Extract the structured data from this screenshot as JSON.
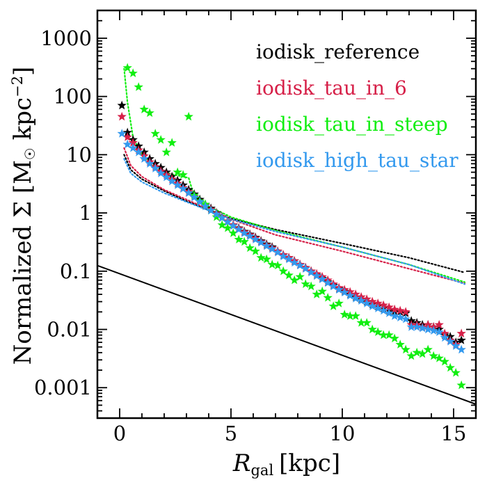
{
  "chart_data": {
    "type": "scatter",
    "title": "",
    "xlabel": "R_gal [kpc]",
    "xlabel_main": "R",
    "xlabel_sub": "gal",
    "xlabel_unit": "[kpc]",
    "ylabel": "Normalized Σ [M☉ kpc⁻²]",
    "ylabel_main": "Normalized Σ [M",
    "ylabel_sun": "☉",
    "ylabel_unit": " kpc",
    "ylabel_exp": "−2",
    "ylabel_close": "]",
    "yscale": "log",
    "xlim": [
      -1,
      16
    ],
    "ylim": [
      0.0003,
      3000
    ],
    "x_ticks": [
      0,
      5,
      10,
      15
    ],
    "x_tick_labels": [
      "0",
      "5",
      "10",
      "15"
    ],
    "y_ticks": [
      0.001,
      0.01,
      0.1,
      1,
      10,
      100,
      1000
    ],
    "y_tick_labels": [
      "0.001",
      "0.01",
      "0.1",
      "1",
      "10",
      "100",
      "1000"
    ],
    "legend_position": "top-right",
    "series": [
      {
        "name": "iodisk_reference",
        "color": "#000000",
        "marker": "star",
        "points": [
          [
            0.1,
            70
          ],
          [
            0.35,
            24
          ],
          [
            0.6,
            18
          ],
          [
            0.85,
            14
          ],
          [
            1.1,
            11
          ],
          [
            1.35,
            8.5
          ],
          [
            1.6,
            7
          ],
          [
            1.85,
            6
          ],
          [
            2.1,
            5
          ],
          [
            2.35,
            4.2
          ],
          [
            2.6,
            3.6
          ],
          [
            2.85,
            3
          ],
          [
            3.1,
            2.5
          ],
          [
            3.35,
            2.1
          ],
          [
            3.6,
            1.7
          ],
          [
            3.85,
            1.4
          ],
          [
            4.1,
            1.2
          ],
          [
            4.35,
            1.0
          ],
          [
            4.6,
            0.85
          ],
          [
            4.85,
            0.72
          ],
          [
            5.1,
            0.62
          ],
          [
            5.35,
            0.55
          ],
          [
            5.6,
            0.48
          ],
          [
            5.85,
            0.43
          ],
          [
            6.1,
            0.38
          ],
          [
            6.35,
            0.33
          ],
          [
            6.6,
            0.29
          ],
          [
            6.85,
            0.26
          ],
          [
            7.1,
            0.22
          ],
          [
            7.35,
            0.19
          ],
          [
            7.6,
            0.17
          ],
          [
            7.85,
            0.15
          ],
          [
            8.1,
            0.13
          ],
          [
            8.35,
            0.115
          ],
          [
            8.6,
            0.1
          ],
          [
            8.85,
            0.085
          ],
          [
            9.1,
            0.075
          ],
          [
            9.35,
            0.065
          ],
          [
            9.6,
            0.057
          ],
          [
            9.85,
            0.05
          ],
          [
            10.1,
            0.045
          ],
          [
            10.35,
            0.04
          ],
          [
            10.6,
            0.036
          ],
          [
            10.85,
            0.033
          ],
          [
            11.1,
            0.03
          ],
          [
            11.35,
            0.027
          ],
          [
            11.6,
            0.025
          ],
          [
            11.85,
            0.023
          ],
          [
            12.1,
            0.021
          ],
          [
            12.35,
            0.02
          ],
          [
            12.6,
            0.02
          ],
          [
            12.85,
            0.019
          ],
          [
            13.1,
            0.014
          ],
          [
            13.35,
            0.013
          ],
          [
            13.6,
            0.012
          ],
          [
            13.85,
            0.012
          ],
          [
            14.1,
            0.011
          ],
          [
            14.35,
            0.01
          ],
          [
            14.6,
            0.008
          ],
          [
            14.85,
            0.0075
          ],
          [
            15.1,
            0.006
          ],
          [
            15.35,
            0.0065
          ]
        ]
      },
      {
        "name": "iodisk_tau_in_6",
        "color": "#d62048",
        "marker": "star",
        "points": [
          [
            0.1,
            45
          ],
          [
            0.35,
            20
          ],
          [
            0.6,
            16
          ],
          [
            0.85,
            12
          ],
          [
            1.1,
            9.5
          ],
          [
            1.35,
            7.5
          ],
          [
            1.6,
            6.2
          ],
          [
            1.85,
            5.2
          ],
          [
            2.1,
            4.5
          ],
          [
            2.35,
            3.8
          ],
          [
            2.6,
            3.2
          ],
          [
            2.85,
            2.7
          ],
          [
            3.1,
            2.3
          ],
          [
            3.35,
            1.9
          ],
          [
            3.6,
            1.6
          ],
          [
            3.85,
            1.35
          ],
          [
            4.1,
            1.15
          ],
          [
            4.35,
            0.98
          ],
          [
            4.6,
            0.84
          ],
          [
            4.85,
            0.72
          ],
          [
            5.1,
            0.62
          ],
          [
            5.35,
            0.54
          ],
          [
            5.6,
            0.47
          ],
          [
            5.85,
            0.42
          ],
          [
            6.1,
            0.37
          ],
          [
            6.35,
            0.32
          ],
          [
            6.6,
            0.28
          ],
          [
            6.85,
            0.25
          ],
          [
            7.1,
            0.22
          ],
          [
            7.35,
            0.19
          ],
          [
            7.6,
            0.17
          ],
          [
            7.85,
            0.15
          ],
          [
            8.1,
            0.13
          ],
          [
            8.35,
            0.115
          ],
          [
            8.6,
            0.1
          ],
          [
            8.85,
            0.09
          ],
          [
            9.1,
            0.08
          ],
          [
            9.35,
            0.07
          ],
          [
            9.6,
            0.06
          ],
          [
            9.85,
            0.052
          ],
          [
            10.1,
            0.048
          ],
          [
            10.35,
            0.044
          ],
          [
            10.6,
            0.04
          ],
          [
            10.85,
            0.036
          ],
          [
            11.1,
            0.033
          ],
          [
            11.35,
            0.03
          ],
          [
            11.6,
            0.028
          ],
          [
            11.85,
            0.026
          ],
          [
            12.1,
            0.024
          ],
          [
            12.35,
            0.022
          ],
          [
            12.6,
            0.021
          ],
          [
            12.85,
            0.02
          ],
          [
            13.1,
            0.012
          ],
          [
            13.35,
            0.012
          ],
          [
            13.6,
            0.011
          ],
          [
            13.85,
            0.012
          ],
          [
            14.1,
            0.011
          ],
          [
            14.35,
            0.012
          ],
          [
            14.6,
            0.0085
          ],
          [
            14.85,
            0.0065
          ],
          [
            15.1,
            0.0055
          ],
          [
            15.35,
            0.0085
          ]
        ]
      },
      {
        "name": "iodisk_tau_in_steep",
        "color": "#11ee11",
        "marker": "star",
        "points": [
          [
            0.35,
            310
          ],
          [
            0.6,
            250
          ],
          [
            0.85,
            145
          ],
          [
            1.1,
            60
          ],
          [
            1.35,
            52
          ],
          [
            1.6,
            23
          ],
          [
            1.85,
            18
          ],
          [
            2.1,
            11
          ],
          [
            2.35,
            16
          ],
          [
            2.6,
            5
          ],
          [
            2.85,
            4.5
          ],
          [
            3.1,
            45
          ],
          [
            3.35,
            2
          ],
          [
            3.6,
            1.6
          ],
          [
            3.85,
            1.4
          ],
          [
            4.1,
            1.1
          ],
          [
            4.35,
            0.85
          ],
          [
            4.6,
            0.62
          ],
          [
            4.85,
            0.55
          ],
          [
            5.1,
            0.45
          ],
          [
            5.35,
            0.35
          ],
          [
            5.6,
            0.32
          ],
          [
            5.85,
            0.25
          ],
          [
            6.1,
            0.22
          ],
          [
            6.35,
            0.17
          ],
          [
            6.6,
            0.16
          ],
          [
            6.85,
            0.13
          ],
          [
            7.1,
            0.125
          ],
          [
            7.35,
            0.1
          ],
          [
            7.6,
            0.085
          ],
          [
            7.85,
            0.07
          ],
          [
            8.1,
            0.08
          ],
          [
            8.35,
            0.06
          ],
          [
            8.6,
            0.055
          ],
          [
            8.85,
            0.04
          ],
          [
            9.1,
            0.045
          ],
          [
            9.35,
            0.035
          ],
          [
            9.6,
            0.025
          ],
          [
            9.85,
            0.028
          ],
          [
            10.1,
            0.018
          ],
          [
            10.35,
            0.017
          ],
          [
            10.6,
            0.017
          ],
          [
            10.85,
            0.013
          ],
          [
            11.1,
            0.013
          ],
          [
            11.35,
            0.01
          ],
          [
            11.6,
            0.009
          ],
          [
            11.85,
            0.008
          ],
          [
            12.1,
            0.008
          ],
          [
            12.35,
            0.007
          ],
          [
            12.6,
            0.0055
          ],
          [
            12.85,
            0.0045
          ],
          [
            13.1,
            0.0035
          ],
          [
            13.35,
            0.004
          ],
          [
            13.6,
            0.0038
          ],
          [
            13.85,
            0.0045
          ],
          [
            14.1,
            0.0035
          ],
          [
            14.35,
            0.0032
          ],
          [
            14.6,
            0.0028
          ],
          [
            14.85,
            0.0022
          ],
          [
            15.1,
            0.0018
          ],
          [
            15.35,
            0.0011
          ]
        ]
      },
      {
        "name": "iodisk_high_tau_star",
        "color": "#3399ee",
        "marker": "star",
        "points": [
          [
            0.1,
            23
          ],
          [
            0.35,
            15
          ],
          [
            0.6,
            13
          ],
          [
            0.85,
            11
          ],
          [
            1.1,
            8.5
          ],
          [
            1.35,
            7
          ],
          [
            1.6,
            5.8
          ],
          [
            1.85,
            4.8
          ],
          [
            2.1,
            4.1
          ],
          [
            2.35,
            3.5
          ],
          [
            2.6,
            3
          ],
          [
            2.85,
            2.6
          ],
          [
            3.1,
            2.2
          ],
          [
            3.35,
            1.85
          ],
          [
            3.6,
            1.55
          ],
          [
            3.85,
            1.3
          ],
          [
            4.1,
            1.1
          ],
          [
            4.35,
            0.95
          ],
          [
            4.6,
            0.82
          ],
          [
            4.85,
            0.7
          ],
          [
            5.1,
            0.6
          ],
          [
            5.35,
            0.52
          ],
          [
            5.6,
            0.45
          ],
          [
            5.85,
            0.4
          ],
          [
            6.1,
            0.35
          ],
          [
            6.35,
            0.31
          ],
          [
            6.6,
            0.27
          ],
          [
            6.85,
            0.24
          ],
          [
            7.1,
            0.21
          ],
          [
            7.35,
            0.18
          ],
          [
            7.6,
            0.16
          ],
          [
            7.85,
            0.14
          ],
          [
            8.1,
            0.125
          ],
          [
            8.35,
            0.11
          ],
          [
            8.6,
            0.095
          ],
          [
            8.85,
            0.083
          ],
          [
            9.1,
            0.073
          ],
          [
            9.35,
            0.063
          ],
          [
            9.6,
            0.055
          ],
          [
            9.85,
            0.048
          ],
          [
            10.1,
            0.043
          ],
          [
            10.35,
            0.038
          ],
          [
            10.6,
            0.034
          ],
          [
            10.85,
            0.031
          ],
          [
            11.1,
            0.028
          ],
          [
            11.35,
            0.025
          ],
          [
            11.6,
            0.023
          ],
          [
            11.85,
            0.021
          ],
          [
            12.1,
            0.019
          ],
          [
            12.35,
            0.017
          ],
          [
            12.6,
            0.016
          ],
          [
            12.85,
            0.015
          ],
          [
            13.1,
            0.011
          ],
          [
            13.35,
            0.011
          ],
          [
            13.6,
            0.0105
          ],
          [
            13.85,
            0.01
          ],
          [
            14.1,
            0.0095
          ],
          [
            14.35,
            0.009
          ],
          [
            14.6,
            0.0072
          ],
          [
            14.85,
            0.0062
          ],
          [
            15.1,
            0.0052
          ],
          [
            15.35,
            0.0045
          ]
        ]
      }
    ],
    "dotted_lines": [
      {
        "color": "#000000",
        "points": [
          [
            0.2,
            10
          ],
          [
            0.5,
            5.5
          ],
          [
            1,
            3.8
          ],
          [
            2,
            2.4
          ],
          [
            3,
            1.6
          ],
          [
            4,
            1.12
          ],
          [
            5,
            0.8
          ],
          [
            7,
            0.52
          ],
          [
            10,
            0.3
          ],
          [
            13,
            0.17
          ],
          [
            15.5,
            0.095
          ]
        ]
      },
      {
        "color": "#d62048",
        "points": [
          [
            0.2,
            13
          ],
          [
            0.5,
            6.5
          ],
          [
            1,
            4.2
          ],
          [
            2,
            2.5
          ],
          [
            3,
            1.7
          ],
          [
            4,
            1.15
          ],
          [
            5,
            0.78
          ],
          [
            7,
            0.42
          ],
          [
            10,
            0.22
          ],
          [
            13,
            0.11
          ],
          [
            15.5,
            0.062
          ]
        ]
      },
      {
        "color": "#11ee11",
        "points": [
          [
            0.2,
            300
          ],
          [
            0.35,
            80
          ],
          [
            0.6,
            20
          ],
          [
            1,
            10
          ],
          [
            1.5,
            6.5
          ],
          [
            2,
            5
          ],
          [
            2.5,
            4.5
          ],
          [
            3.1,
            4
          ],
          [
            3.3,
            2.2
          ],
          [
            4,
            1.3
          ],
          [
            5,
            0.85
          ],
          [
            7,
            0.5
          ],
          [
            10,
            0.26
          ],
          [
            13,
            0.13
          ],
          [
            15.5,
            0.065
          ]
        ]
      },
      {
        "color": "#3399ee",
        "points": [
          [
            0.2,
            8.5
          ],
          [
            0.5,
            4.8
          ],
          [
            1,
            3.4
          ],
          [
            2,
            2.2
          ],
          [
            3,
            1.55
          ],
          [
            4,
            1.1
          ],
          [
            5,
            0.78
          ],
          [
            7,
            0.48
          ],
          [
            10,
            0.26
          ],
          [
            13,
            0.13
          ],
          [
            15.5,
            0.06
          ]
        ]
      }
    ],
    "solid_line": {
      "color": "#000000",
      "points": [
        [
          -1,
          0.125
        ],
        [
          16,
          0.00052
        ]
      ]
    }
  }
}
